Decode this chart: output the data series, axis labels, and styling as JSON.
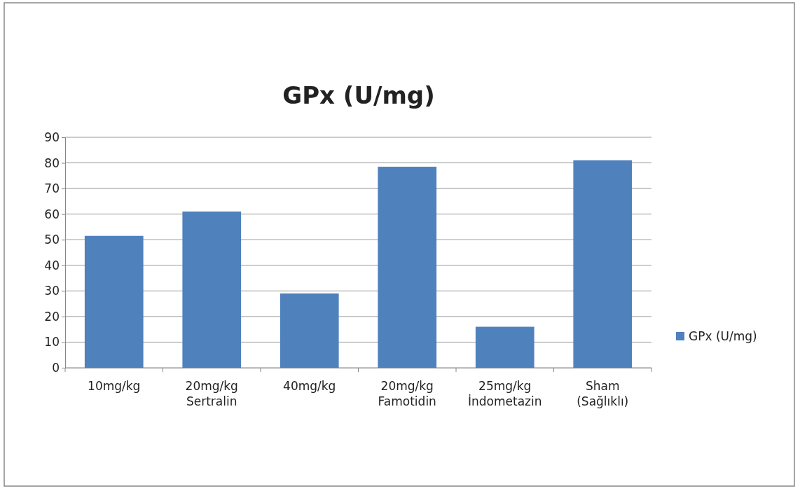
{
  "chart_data": {
    "type": "bar",
    "title": "GPx (U/mg)",
    "categories": [
      "10mg/kg",
      "20mg/kg\nSertralin",
      "40mg/kg",
      "20mg/kg\nFamotidin",
      "25mg/kg\nİndometazin",
      "Sham\n(Sağlıklı)"
    ],
    "series": [
      {
        "name": "GPx (U/mg)",
        "color": "#4f81bd",
        "values": [
          51.5,
          61,
          29,
          78.5,
          16,
          81
        ]
      }
    ],
    "ylim": [
      0,
      90
    ],
    "yticks": [
      0,
      10,
      20,
      30,
      40,
      50,
      60,
      70,
      80,
      90
    ],
    "grid": "y",
    "legend": "right"
  }
}
